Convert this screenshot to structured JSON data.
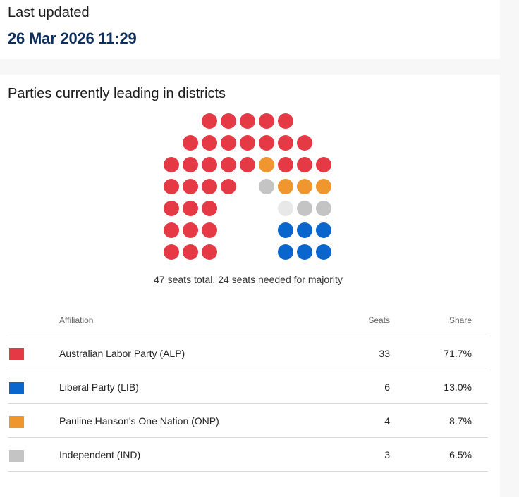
{
  "updated": {
    "label": "Last updated",
    "timestamp": "26 Mar 2026 11:29"
  },
  "section": {
    "title": "Parties currently leading in districts"
  },
  "chart": {
    "summary": "47 seats total, 24 seats needed for majority",
    "colors": {
      "ALP": "#e63946",
      "LIB": "#0a66cc",
      "ONP": "#f0962e",
      "IND": "#c4c4c4",
      "UNDECLARED": "#e8e8e8"
    },
    "seat_order": [
      "ALP",
      "ALP",
      "ALP",
      "ALP",
      "ALP",
      "ALP",
      "ALP",
      "ALP",
      "ALP",
      "ALP",
      "ALP",
      "ALP",
      "ALP",
      "ALP",
      "ALP",
      "ALP",
      "ALP",
      "ONP",
      "ALP",
      "ALP",
      "ALP",
      "ALP",
      "ALP",
      "ALP",
      "ALP",
      "IND",
      "ONP",
      "ONP",
      "ONP",
      "ALP",
      "ALP",
      "ALP",
      "UNDECLARED",
      "IND",
      "IND",
      "ALP",
      "ALP",
      "ALP",
      "LIB",
      "LIB",
      "LIB",
      "ALP",
      "ALP",
      "ALP",
      "LIB",
      "LIB",
      "LIB"
    ]
  },
  "table": {
    "headers": {
      "affiliation": "Affiliation",
      "seats": "Seats",
      "share": "Share"
    },
    "rows": [
      {
        "party": "Australian Labor Party (ALP)",
        "seats": "33",
        "share": "71.7%",
        "color": "#e63946"
      },
      {
        "party": "Liberal Party (LIB)",
        "seats": "6",
        "share": "13.0%",
        "color": "#0a66cc"
      },
      {
        "party": "Pauline Hanson's One Nation (ONP)",
        "seats": "4",
        "share": "8.7%",
        "color": "#f0962e"
      },
      {
        "party": "Independent (IND)",
        "seats": "3",
        "share": "6.5%",
        "color": "#c4c4c4"
      }
    ]
  }
}
